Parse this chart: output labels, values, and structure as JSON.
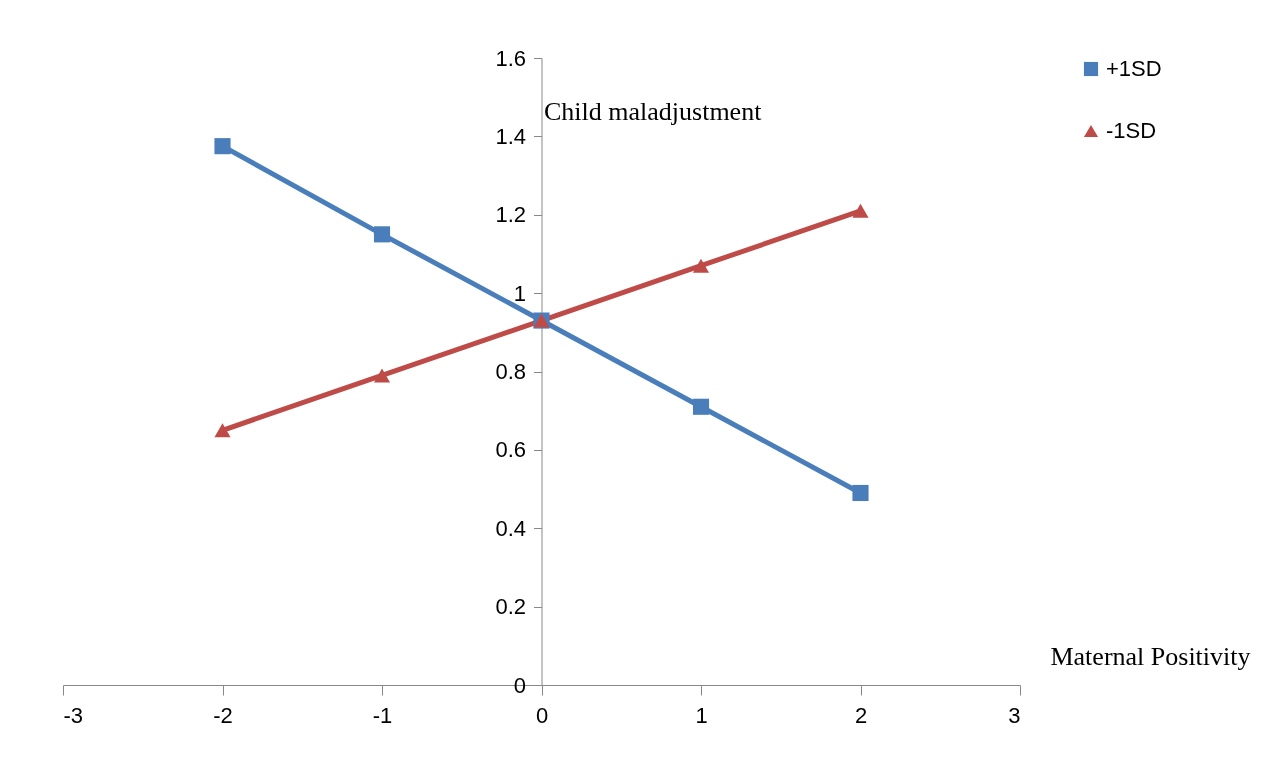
{
  "chart_data": {
    "type": "line",
    "xlabel": "Maternal Positivity",
    "ylabel": "Child maladjustment",
    "x": [
      -2,
      -1,
      0,
      1,
      2
    ],
    "series": [
      {
        "name": "+1SD",
        "color": "#4a7ebb",
        "marker": "square",
        "values": [
          1.375,
          1.15,
          0.93,
          0.71,
          0.49
        ]
      },
      {
        "name": "-1SD",
        "color": "#be4b48",
        "marker": "triangle",
        "values": [
          0.65,
          0.79,
          0.93,
          1.07,
          1.21
        ]
      }
    ],
    "xlim": [
      -3,
      3
    ],
    "xticks": [
      -3,
      -2,
      -1,
      0,
      1,
      2,
      3
    ],
    "ylim": [
      0,
      1.6
    ],
    "yticks": [
      0,
      0.2,
      0.4,
      0.6,
      0.8,
      1,
      1.2,
      1.4,
      1.6
    ],
    "grid": false,
    "legend": "right",
    "line_style": "solid"
  }
}
